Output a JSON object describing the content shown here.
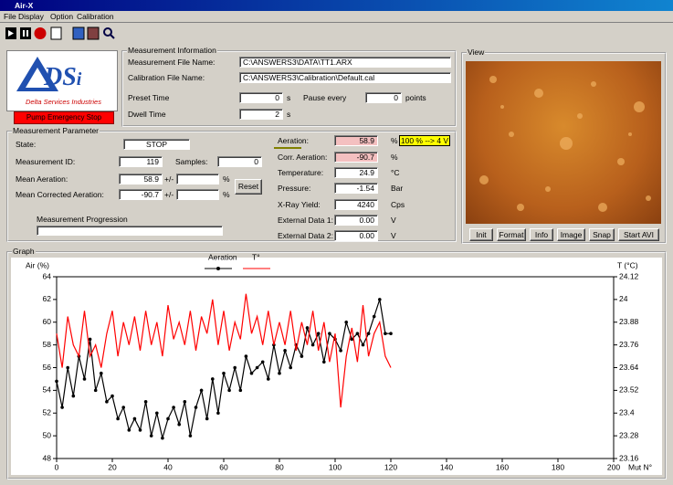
{
  "window": {
    "title": "Air-X"
  },
  "menu": [
    "File",
    "Display",
    "Option",
    "Calibration"
  ],
  "logo": {
    "mark": "DS",
    "mark_sub": "i",
    "company": "Delta Services Industries"
  },
  "pump_button": "Pump Emergency Stop",
  "measurement_information": {
    "title": "Measurement Information",
    "file_label": "Measurement File Name:",
    "file": "C:\\ANSWERS3\\DATA\\TT1.ARX",
    "calibration_label": "Calibration File Name:",
    "calibration": "C:\\ANSWERS3\\Calibration\\Default.cal",
    "preset_label": "Preset Time",
    "preset": "0",
    "preset_unit": "s",
    "pause_label": "Pause every",
    "pause": "0",
    "pause_unit": "points",
    "dwell_label": "Dwell Time",
    "dwell": "2",
    "dwell_unit": "s"
  },
  "measurement_parameter": {
    "title": "Measurement Parameter",
    "state_label": "State:",
    "state": "STOP",
    "id_label": "Measurement ID:",
    "id": "119",
    "samples_label": "Samples:",
    "samples": "0",
    "mean_label": "Mean Aeration:",
    "mean": "58.9",
    "pm1": "+/-",
    "pct1": "%",
    "mean_corr_label": "Mean Corrected Aeration:",
    "mean_corr": "-90.7",
    "pm2": "+/-",
    "pct2": "%",
    "reset": "Reset",
    "progression_label": "Measurement Progression"
  },
  "readings": {
    "badge": "100 % --> 4 V",
    "rows": [
      {
        "label": "Aeration:",
        "value": "58.9",
        "unit": "%"
      },
      {
        "label": "Corr. Aeration:",
        "value": "-90.7",
        "unit": "%"
      },
      {
        "label": "Temperature:",
        "value": "24.9",
        "unit": "°C"
      },
      {
        "label": "Pressure:",
        "value": "-1.54",
        "unit": "Bar"
      },
      {
        "label": "X-Ray Yield:",
        "value": "4240",
        "unit": "Cps"
      },
      {
        "label": "External Data 1:",
        "value": "0.00",
        "unit": "V"
      },
      {
        "label": "External Data 2:",
        "value": "0.00",
        "unit": "V"
      }
    ]
  },
  "view": {
    "title": "View",
    "buttons": [
      "Init",
      "Format",
      "Info",
      "Image",
      "Snap",
      "Start AVI"
    ]
  },
  "graph": {
    "title": "Graph"
  },
  "chart_data": {
    "type": "line",
    "y_label": "Air (%)",
    "y2_label": "T (°C)",
    "x_label": "Mut N°",
    "x": [
      0,
      2,
      4,
      6,
      8,
      10,
      12,
      14,
      16,
      18,
      20,
      22,
      24,
      26,
      28,
      30,
      32,
      34,
      36,
      38,
      40,
      42,
      44,
      46,
      48,
      50,
      52,
      54,
      56,
      58,
      60,
      62,
      64,
      66,
      68,
      70,
      72,
      74,
      76,
      78,
      80,
      82,
      84,
      86,
      88,
      90,
      92,
      94,
      96,
      98,
      100,
      102,
      104,
      106,
      108,
      110,
      112,
      114,
      116,
      118,
      120
    ],
    "series": [
      {
        "name": "Aeration",
        "color": "#000000",
        "marker": "circle",
        "values": [
          54.8,
          52.5,
          56,
          53.5,
          57,
          55,
          58.5,
          54,
          55.5,
          53,
          53.5,
          51.5,
          52.5,
          50.5,
          51.5,
          50.5,
          53,
          50,
          52,
          49.8,
          51.5,
          52.5,
          51,
          53,
          50,
          52.5,
          54,
          51.5,
          55,
          52,
          55.5,
          54,
          56,
          54,
          57,
          55.5,
          56,
          56.5,
          55,
          58,
          55.5,
          57.5,
          56,
          58,
          57,
          59.5,
          58,
          59,
          56.5,
          59,
          58.5,
          57.5,
          60,
          58.5,
          59,
          58,
          59,
          60.5,
          62,
          59,
          59
        ]
      },
      {
        "name": "T°",
        "color": "#ff0000",
        "axis": "y2",
        "values": [
          23.82,
          23.64,
          23.91,
          23.76,
          23.7,
          23.94,
          23.7,
          23.76,
          23.64,
          23.82,
          23.94,
          23.7,
          23.88,
          23.76,
          23.91,
          23.73,
          23.94,
          23.76,
          23.88,
          23.7,
          23.97,
          23.79,
          23.88,
          23.76,
          23.94,
          23.73,
          23.91,
          23.82,
          24,
          23.76,
          23.94,
          23.73,
          23.88,
          23.79,
          24.03,
          23.82,
          23.91,
          23.76,
          23.94,
          23.76,
          23.88,
          23.76,
          23.94,
          23.73,
          23.88,
          23.76,
          23.94,
          23.73,
          23.88,
          23.67,
          23.82,
          23.43,
          23.7,
          23.85,
          23.67,
          23.97,
          23.7,
          23.82,
          23.88,
          23.7,
          23.64
        ]
      }
    ],
    "xlim": [
      0,
      200
    ],
    "xticks": [
      0,
      20,
      40,
      60,
      80,
      100,
      120,
      140,
      160,
      180,
      200
    ],
    "ylim": [
      48,
      64
    ],
    "yticks": [
      48,
      50,
      52,
      54,
      56,
      58,
      60,
      62,
      64
    ],
    "y2lim": [
      23.16,
      24.12
    ],
    "y2ticks": [
      23.16,
      23.28,
      23.4,
      23.52,
      23.64,
      23.76,
      23.88,
      24,
      24.12
    ],
    "grid": false
  }
}
